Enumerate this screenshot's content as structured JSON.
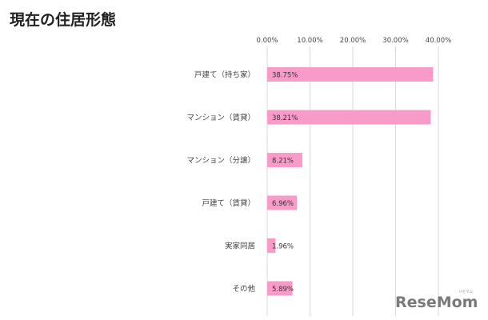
{
  "chart_data": {
    "type": "bar",
    "orientation": "horizontal",
    "title": "現在の住居形態",
    "categories": [
      "戸建て（持ち家）",
      "マンション（賃貸）",
      "マンション（分譲）",
      "戸建て（賃貸）",
      "実家同居",
      "その他"
    ],
    "values": [
      38.75,
      38.21,
      8.21,
      6.96,
      1.96,
      5.89
    ],
    "data_labels": [
      "38.75%",
      "38.21%",
      "8.21%",
      "6.96%",
      "1.96%",
      "5.89%"
    ],
    "xlim": [
      0,
      40
    ],
    "ticks": [
      0,
      10,
      20,
      30,
      40
    ],
    "tick_labels": [
      "0.00%",
      "10.00%",
      "20.00%",
      "30.00%",
      "40.00%"
    ],
    "axis_position": "top",
    "grid": true,
    "xlabel": "",
    "ylabel": "",
    "colors": {
      "bar": "#f99bc9",
      "grid": "#d9d9d9",
      "text": "#444444"
    }
  },
  "watermark": {
    "text": "ReseMom",
    "sub": "リセマム"
  }
}
